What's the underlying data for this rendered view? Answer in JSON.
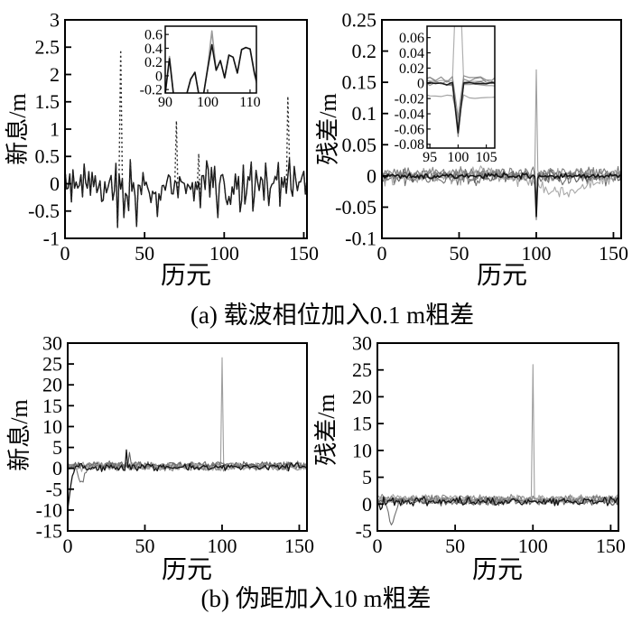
{
  "figure": {
    "caption_a": "(a) 载波相位加入0.1 m粗差",
    "caption_b": "(b) 伪距加入10 m粗差",
    "xlabel": "历元",
    "ylabel_innovation": "新息/m",
    "ylabel_residual": "残差/m"
  },
  "colors": {
    "axis": "#000000",
    "background": "#ffffff",
    "line_black": "#141414",
    "line_gray_light": "#9e9e9e",
    "line_gray_mid": "#7c7c7c",
    "line_gray_dark": "#5f5f5f"
  },
  "chart_data": [
    {
      "id": "innovation-carrier-phase",
      "panel": "a",
      "position": "left",
      "type": "line",
      "xlabel": "历元",
      "ylabel": "新息/m",
      "xlim": [
        0,
        152
      ],
      "ylim": [
        -1,
        3
      ],
      "xticks": [
        0,
        50,
        100,
        150
      ],
      "xtick_labels": [
        "0",
        "50",
        "100",
        "150"
      ],
      "yticks": [
        3,
        2.5,
        2,
        1.5,
        1,
        0.5,
        0,
        -0.5,
        -1
      ],
      "ytick_labels": [
        "3",
        "2.5",
        "2",
        "1.5",
        "1",
        "0.5",
        "0",
        "-0.5",
        "-1"
      ],
      "series": [
        {
          "name": "innovation-normal",
          "color": "#141414",
          "width": 1.4,
          "noise": 0.55,
          "offset": -0.02,
          "seed": 11,
          "spikes": [
            [
              33,
              -0.8
            ],
            [
              37,
              -0.62
            ],
            [
              45,
              -0.78
            ],
            [
              58,
              -0.6
            ],
            [
              96,
              -0.62
            ],
            [
              118,
              -0.5
            ]
          ]
        },
        {
          "name": "innovation-with-outlier",
          "color": "#2a2a2a",
          "width": 1.4,
          "dash": "2 3",
          "noise": 0.55,
          "offset": -0.02,
          "seed": 11,
          "spikes": [
            [
              33,
              -0.8
            ],
            [
              37,
              -0.62
            ],
            [
              45,
              -0.78
            ],
            [
              58,
              -0.6
            ],
            [
              96,
              -0.62
            ],
            [
              118,
              -0.5
            ],
            [
              35,
              2.45
            ],
            [
              70,
              1.15
            ],
            [
              84,
              0.55
            ],
            [
              140,
              1.6
            ]
          ]
        }
      ],
      "inset": {
        "xlim": [
          90,
          111.5
        ],
        "ylim": [
          -0.25,
          0.72
        ],
        "xticks": [
          90,
          100,
          110
        ],
        "xtick_labels": [
          "90",
          "100",
          "110"
        ],
        "yticks": [
          0.6,
          0.4,
          0.2,
          0,
          -0.2
        ],
        "ytick_labels": [
          "0.6",
          "0.4",
          "0.2",
          "0",
          "-0.2"
        ],
        "series": [
          {
            "name": "inset-innovation-gray",
            "color": "#9a9a9a",
            "width": 1.6,
            "x0": 89,
            "values": [
              -0.28,
              -0.26,
              0.28,
              -0.3,
              -0.27,
              -0.3,
              -0.28,
              -0.05,
              0.05,
              -0.3,
              -0.28,
              0.12,
              0.65,
              0.08,
              0.22,
              -0.03,
              0.3,
              0.27,
              0.04,
              0.38,
              0.41,
              0.39,
              0.02,
              -0.22
            ]
          },
          {
            "name": "inset-innovation-black",
            "color": "#141414",
            "width": 1.6,
            "x0": 89,
            "values": [
              -0.28,
              -0.26,
              0.25,
              -0.3,
              -0.27,
              -0.3,
              -0.28,
              -0.05,
              0.05,
              -0.3,
              -0.28,
              0.1,
              0.45,
              0.08,
              0.22,
              -0.03,
              0.3,
              0.27,
              0.04,
              0.38,
              0.41,
              0.39,
              0.05,
              -0.18
            ]
          }
        ]
      }
    },
    {
      "id": "residual-carrier-phase",
      "panel": "a",
      "position": "right",
      "type": "line",
      "xlabel": "历元",
      "ylabel": "残差/m",
      "xlim": [
        0,
        155
      ],
      "ylim": [
        -0.1,
        0.25
      ],
      "xticks": [
        0,
        50,
        100,
        150
      ],
      "xtick_labels": [
        "0",
        "50",
        "100",
        "150"
      ],
      "yticks": [
        0.25,
        0.2,
        0.15,
        0.1,
        0.05,
        0,
        -0.05,
        -0.1
      ],
      "ytick_labels": [
        "0.25",
        "0.2",
        "0.15",
        "0.1",
        "0.05",
        "0",
        "-0.05",
        "-0.1"
      ],
      "series": [
        {
          "name": "residual-sat-1",
          "color": "#9e9e9e",
          "width": 1.1,
          "noise": 0.012,
          "offset": 0.002,
          "seed": 21,
          "spikes": [
            [
              100,
              0.17
            ]
          ]
        },
        {
          "name": "residual-sat-2",
          "color": "#6f6f6f",
          "width": 1.1,
          "noise": 0.014,
          "offset": -0.003,
          "seed": 22,
          "spikes": [
            [
              100,
              -0.07
            ]
          ]
        },
        {
          "name": "residual-sat-3",
          "color": "#8a8a8a",
          "width": 1.1,
          "noise": 0.012,
          "offset": 0.002,
          "seed": 23,
          "spikes": [
            [
              100,
              -0.06
            ]
          ]
        },
        {
          "name": "residual-sat-4",
          "color": "#5f5f5f",
          "width": 1.1,
          "noise": 0.01,
          "offset": -0.001,
          "seed": 24,
          "spikes": [
            [
              100,
              -0.055
            ]
          ]
        },
        {
          "name": "residual-sat-5",
          "color": "#a8a8a8",
          "width": 1.1,
          "noise": 0.014,
          "offset": -0.004,
          "seed": 25,
          "spikes": [
            [
              100,
              -0.05
            ]
          ],
          "bias": [
            [
              52,
              0
            ],
            [
              60,
              0.014
            ],
            [
              72,
              0.008
            ],
            [
              85,
              0
            ],
            [
              100,
              -0.008
            ],
            [
              108,
              -0.02
            ],
            [
              118,
              -0.024
            ],
            [
              130,
              -0.015
            ],
            [
              142,
              -0.004
            ],
            [
              155,
              0.01
            ]
          ]
        },
        {
          "name": "residual-sat-6",
          "color": "#7c7c7c",
          "width": 1.1,
          "noise": 0.013,
          "offset": 0.004,
          "seed": 26,
          "spikes": [
            [
              100,
              -0.045
            ]
          ]
        },
        {
          "name": "residual-mean",
          "color": "#141414",
          "width": 1.6,
          "noise": 0.005,
          "offset": 0,
          "seed": 27,
          "spikes": [
            [
              100,
              -0.065
            ]
          ]
        }
      ],
      "inset": {
        "xlim": [
          94.5,
          106.5
        ],
        "ylim": [
          -0.085,
          0.075
        ],
        "xticks": [
          95,
          100,
          105
        ],
        "xtick_labels": [
          "95",
          "100",
          "105"
        ],
        "yticks": [
          0.06,
          0.04,
          0.02,
          0,
          -0.02,
          -0.04,
          -0.06,
          -0.08
        ],
        "ytick_labels": [
          "0.06",
          "0.04",
          "0.02",
          "0",
          "-0.02",
          "-0.04",
          "-0.06",
          "-0.08"
        ],
        "series": [
          {
            "name": "inset-residual-sat-1",
            "color": "#b0b0b0",
            "width": 1.2,
            "noise": 0.004,
            "offset": 0.002,
            "seed": 61,
            "spikes": [
              [
                100,
                0.2
              ]
            ]
          },
          {
            "name": "inset-residual-sat-2",
            "color": "#8a8a8a",
            "width": 1.2,
            "noise": 0.005,
            "offset": 0.004,
            "seed": 62,
            "spikes": [
              [
                100,
                -0.07
              ]
            ]
          },
          {
            "name": "inset-residual-sat-3",
            "color": "#9a9a9a",
            "width": 1.2,
            "noise": 0.005,
            "offset": -0.002,
            "seed": 63,
            "spikes": [
              [
                100,
                -0.062
              ]
            ]
          },
          {
            "name": "inset-residual-sat-4",
            "color": "#777777",
            "width": 1.2,
            "noise": 0.004,
            "offset": 0.001,
            "seed": 64,
            "spikes": [
              [
                100,
                -0.057
              ]
            ]
          },
          {
            "name": "inset-residual-sat-5",
            "color": "#a5a5a5",
            "width": 1.2,
            "noise": 0.005,
            "offset": -0.018,
            "seed": 65,
            "spikes": [
              [
                100,
                -0.05
              ]
            ]
          },
          {
            "name": "inset-residual-sat-6",
            "color": "#8f8f8f",
            "width": 1.2,
            "noise": 0.006,
            "offset": 0.006,
            "seed": 66,
            "spikes": [
              [
                100,
                -0.045
              ]
            ]
          },
          {
            "name": "inset-residual-mean",
            "color": "#1a1a1a",
            "width": 1.5,
            "noise": 0.003,
            "offset": 0,
            "seed": 67,
            "spikes": [
              [
                100,
                -0.065
              ]
            ]
          }
        ]
      }
    },
    {
      "id": "innovation-pseudorange",
      "panel": "b",
      "position": "left",
      "type": "line",
      "xlabel": "历元",
      "ylabel": "新息/m",
      "xlim": [
        0,
        155
      ],
      "ylim": [
        -15,
        30
      ],
      "xticks": [
        0,
        50,
        100,
        150
      ],
      "xtick_labels": [
        "0",
        "50",
        "100",
        "150"
      ],
      "yticks": [
        30,
        25,
        20,
        15,
        10,
        5,
        0,
        -5,
        -10,
        -15
      ],
      "ytick_labels": [
        "30",
        "25",
        "20",
        "15",
        "10",
        "5",
        "0",
        "-5",
        "-10",
        "-15"
      ],
      "series": [
        {
          "name": "innovation-sat-1",
          "color": "#9e9e9e",
          "width": 1.1,
          "noise": 1.1,
          "offset": 0.6,
          "seed": 31,
          "spikes": [
            [
              100,
              26.5
            ]
          ]
        },
        {
          "name": "innovation-sat-3",
          "color": "#6f6f6f",
          "width": 1.1,
          "noise": 1.1,
          "offset": 0.8,
          "seed": 33,
          "bias": [
            [
              5,
              0
            ],
            [
              9,
              -4.6
            ],
            [
              13,
              0
            ]
          ]
        },
        {
          "name": "innovation-sat-4",
          "color": "#8a8a8a",
          "width": 1.1,
          "noise": 1.0,
          "offset": 0.2,
          "seed": 34
        },
        {
          "name": "innovation-sat-5",
          "color": "#5f5f5f",
          "width": 1.1,
          "noise": 1.1,
          "offset": 0.7,
          "seed": 35,
          "spikes": [
            [
              40,
              3.8
            ]
          ]
        },
        {
          "name": "innovation-sat-6",
          "color": "#a8a8a8",
          "width": 1.1,
          "noise": 1.2,
          "offset": 0.4,
          "seed": 36
        },
        {
          "name": "innovation-sat-7",
          "color": "#7c7c7c",
          "width": 1.1,
          "noise": 1.0,
          "offset": 0.5,
          "seed": 37
        },
        {
          "name": "innovation-mean",
          "color": "#141414",
          "width": 1.3,
          "noise": 1.1,
          "offset": 0.3,
          "seed": 32,
          "bias": [
            [
              0,
              -10.3
            ],
            [
              1,
              -7
            ],
            [
              3,
              -1.5
            ],
            [
              5,
              0
            ]
          ],
          "spikes": [
            [
              38,
              4.4
            ]
          ]
        }
      ]
    },
    {
      "id": "residual-pseudorange",
      "panel": "b",
      "position": "right",
      "type": "line",
      "xlabel": "历元",
      "ylabel": "残差/m",
      "xlim": [
        0,
        155
      ],
      "ylim": [
        -5,
        30
      ],
      "xticks": [
        0,
        50,
        100,
        150
      ],
      "xtick_labels": [
        "0",
        "50",
        "100",
        "150"
      ],
      "yticks": [
        30,
        25,
        20,
        15,
        10,
        5,
        0,
        -5
      ],
      "ytick_labels": [
        "30",
        "25",
        "20",
        "15",
        "10",
        "5",
        "0",
        "-5"
      ],
      "series": [
        {
          "name": "residual-sat-1",
          "color": "#9e9e9e",
          "width": 1.1,
          "noise": 0.95,
          "offset": 0.8,
          "seed": 41,
          "spikes": [
            [
              100,
              26
            ]
          ]
        },
        {
          "name": "residual-sat-3",
          "color": "#6f6f6f",
          "width": 1.1,
          "noise": 1.0,
          "offset": 0.6,
          "seed": 43,
          "bias": [
            [
              5,
              0
            ],
            [
              9,
              -4.3
            ],
            [
              14,
              0
            ]
          ]
        },
        {
          "name": "residual-sat-4",
          "color": "#8a8a8a",
          "width": 1.1,
          "noise": 0.95,
          "offset": 1.0,
          "seed": 44
        },
        {
          "name": "residual-sat-5",
          "color": "#5f5f5f",
          "width": 1.1,
          "noise": 1.0,
          "offset": 0.6,
          "seed": 45
        },
        {
          "name": "residual-sat-6",
          "color": "#a8a8a8",
          "width": 1.1,
          "noise": 1.05,
          "offset": 0.9,
          "seed": 46
        },
        {
          "name": "residual-sat-7",
          "color": "#7c7c7c",
          "width": 1.1,
          "noise": 0.95,
          "offset": 0.7,
          "seed": 47
        },
        {
          "name": "residual-mean",
          "color": "#141414",
          "width": 1.3,
          "noise": 1.0,
          "offset": 0.5,
          "seed": 42,
          "bias": [
            [
              0,
              0
            ],
            [
              2,
              -1.8
            ],
            [
              4,
              0
            ]
          ]
        }
      ]
    }
  ]
}
